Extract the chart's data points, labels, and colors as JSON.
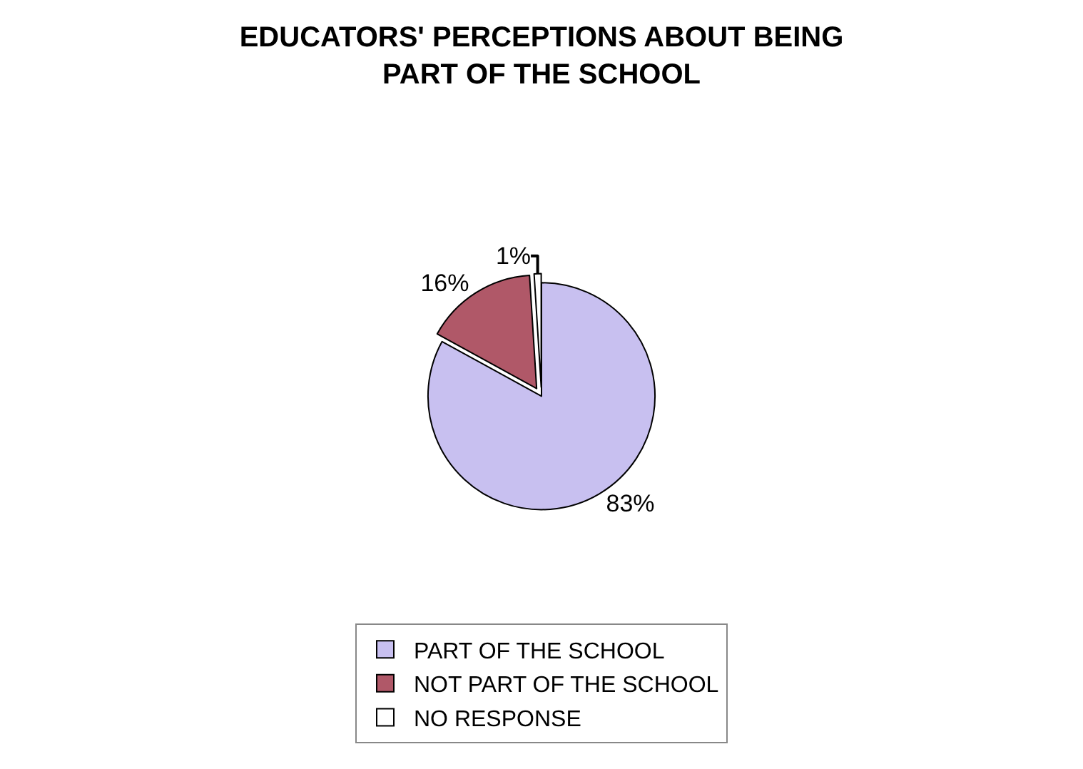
{
  "chart_data": {
    "type": "pie",
    "title": "EDUCATORS' PERCEPTIONS ABOUT BEING PART OF THE SCHOOL",
    "categories": [
      "PART OF THE SCHOOL",
      "NOT PART OF THE SCHOOL",
      "NO RESPONSE"
    ],
    "values": [
      83,
      16,
      1
    ],
    "colors": [
      "#c8c0f0",
      "#b05868",
      "#ffffff"
    ],
    "value_labels": [
      "83%",
      "16%",
      "1%"
    ],
    "legend": "bottom"
  }
}
